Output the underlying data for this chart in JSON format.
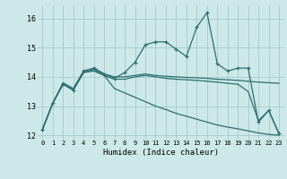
{
  "xlabel": "Humidex (Indice chaleur)",
  "background_color": "#cce8e8",
  "grid_color": "#aacece",
  "line_color": "#2d6e6e",
  "xlim": [
    -0.5,
    23.5
  ],
  "ylim": [
    11.85,
    16.45
  ],
  "yticks": [
    12,
    13,
    14,
    15,
    16
  ],
  "xticks": [
    0,
    1,
    2,
    3,
    4,
    5,
    6,
    7,
    8,
    9,
    10,
    11,
    12,
    13,
    14,
    15,
    16,
    17,
    18,
    19,
    20,
    21,
    22,
    23
  ],
  "series": [
    {
      "x": [
        0,
        1,
        2,
        3,
        4,
        5,
        6,
        7,
        8,
        9,
        10,
        11,
        12,
        13,
        14,
        15,
        16,
        17,
        18,
        19,
        20,
        21,
        22,
        23
      ],
      "y": [
        12.2,
        13.1,
        13.8,
        13.6,
        14.2,
        14.3,
        14.1,
        14.0,
        14.0,
        14.05,
        14.1,
        14.05,
        14.02,
        14.0,
        13.98,
        13.97,
        13.95,
        13.92,
        13.9,
        13.88,
        13.85,
        13.82,
        13.8,
        13.78
      ],
      "marker": false,
      "linewidth": 0.9
    },
    {
      "x": [
        0,
        1,
        2,
        3,
        4,
        5,
        6,
        7,
        8,
        9,
        10,
        11,
        12,
        13,
        14,
        15,
        16,
        17,
        18,
        19,
        20,
        21,
        22,
        23
      ],
      "y": [
        12.2,
        13.1,
        13.75,
        13.55,
        14.15,
        14.25,
        14.05,
        13.92,
        13.92,
        14.0,
        14.05,
        14.0,
        13.95,
        13.92,
        13.9,
        13.88,
        13.85,
        13.82,
        13.78,
        13.75,
        13.5,
        12.5,
        12.85,
        12.05
      ],
      "marker": false,
      "linewidth": 0.9
    },
    {
      "x": [
        0,
        1,
        2,
        3,
        4,
        5,
        6,
        7,
        8,
        9,
        10,
        11,
        12,
        13,
        14,
        15,
        16,
        17,
        18,
        19,
        20,
        21,
        22,
        23
      ],
      "y": [
        12.2,
        13.1,
        13.75,
        13.55,
        14.15,
        14.2,
        14.05,
        13.6,
        13.45,
        13.3,
        13.15,
        13.0,
        12.88,
        12.75,
        12.65,
        12.55,
        12.45,
        12.35,
        12.28,
        12.22,
        12.15,
        12.08,
        12.03,
        12.0
      ],
      "marker": false,
      "linewidth": 0.9
    },
    {
      "x": [
        0,
        1,
        2,
        3,
        4,
        5,
        6,
        7,
        8,
        9,
        10,
        11,
        12,
        13,
        14,
        15,
        16,
        17,
        18,
        19,
        20,
        21,
        22,
        23
      ],
      "y": [
        12.2,
        13.1,
        13.75,
        13.55,
        14.2,
        14.3,
        14.1,
        13.95,
        14.15,
        14.5,
        15.1,
        15.2,
        15.2,
        14.95,
        14.7,
        15.7,
        16.2,
        14.45,
        14.2,
        14.3,
        14.3,
        12.45,
        12.85,
        12.05
      ],
      "marker": true,
      "linewidth": 0.9
    }
  ]
}
